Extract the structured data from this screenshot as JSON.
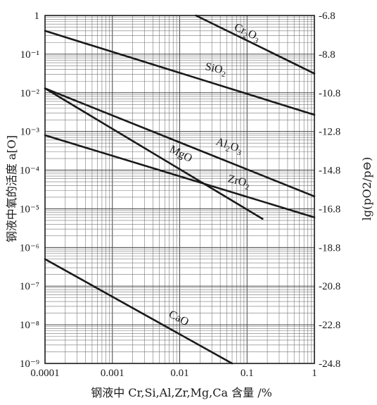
{
  "chart_data": {
    "type": "line",
    "xlabel": "钢液中 Cr,Si,Al,Zr,Mg,Ca 含量 /%",
    "ylabel_left": "钢液中氧的活度 a[O]",
    "ylabel_right": "lg(pO2/p⊖)",
    "x_scale": "log",
    "y_scale": "log",
    "xlim": [
      0.0001,
      1
    ],
    "ylim": [
      1e-09,
      1
    ],
    "grid": true,
    "x_ticks": [
      "0.0001",
      "0.001",
      "0.01",
      "0.1",
      "1"
    ],
    "y_ticks_left": [
      "1",
      "10⁻¹",
      "10⁻²",
      "10⁻³",
      "10⁻⁴",
      "10⁻⁵",
      "10⁻⁶",
      "10⁻⁷",
      "10⁻⁸",
      "10⁻⁹"
    ],
    "y_ticks_right": [
      "-6.8",
      "-8.8",
      "-10.8",
      "-12.8",
      "-14.8",
      "-16.8",
      "-18.8",
      "-20.8",
      "-22.8",
      "-24.8"
    ],
    "series": [
      {
        "name": "Cr2O3",
        "x": [
          0.0174,
          1
        ],
        "y": [
          1,
          0.0316
        ]
      },
      {
        "name": "SiO2",
        "x": [
          0.0001,
          1
        ],
        "y": [
          0.4,
          0.0027
        ]
      },
      {
        "name": "Al2O3",
        "x": [
          0.0001,
          1
        ],
        "y": [
          0.013,
          2.1e-05
        ]
      },
      {
        "name": "MgO",
        "x": [
          0.0001,
          0.17
        ],
        "y": [
          0.013,
          5.5e-06
        ]
      },
      {
        "name": "ZrO2",
        "x": [
          0.0001,
          1
        ],
        "y": [
          0.0008,
          6e-06
        ]
      },
      {
        "name": "CaO",
        "x": [
          0.0001,
          0.06
        ],
        "y": [
          5e-07,
          1e-09
        ]
      }
    ]
  },
  "series_labels": {
    "cr2o3": {
      "main": "Cr",
      "sub1": "2",
      "mid": "O",
      "sub2": "3"
    },
    "sio2": {
      "main": "SiO",
      "sub1": "2"
    },
    "al2o3": {
      "main": "Al",
      "sub1": "2",
      "mid": "O",
      "sub2": "3"
    },
    "mgo": {
      "main": "MgO"
    },
    "zro2": {
      "main": "ZrO",
      "sub1": "2"
    },
    "cao": {
      "main": "CaO"
    }
  }
}
